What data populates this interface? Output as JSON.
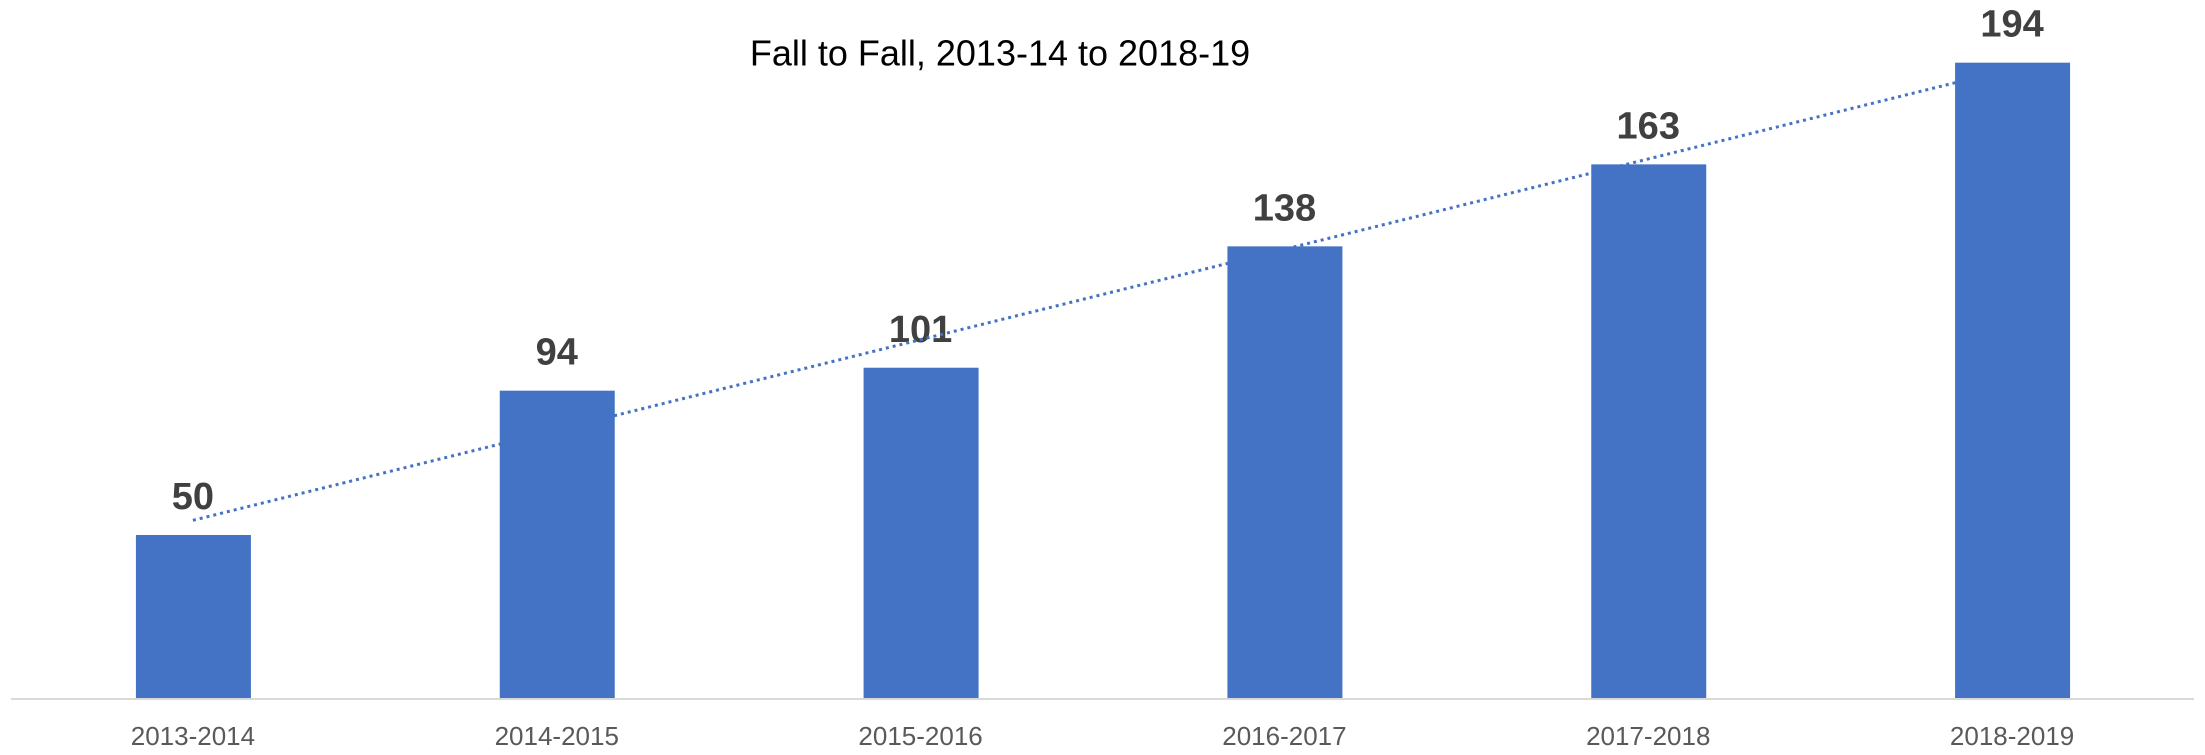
{
  "chart_data": {
    "type": "bar",
    "title": "Fall to Fall, 2013-14 to 2018-19",
    "categories": [
      "2013-2014",
      "2014-2015",
      "2015-2016",
      "2016-2017",
      "2017-2018",
      "2018-2019"
    ],
    "values": [
      50,
      94,
      101,
      138,
      163,
      194
    ],
    "color": "#4472c4",
    "ylim": [
      0,
      200
    ],
    "trendline": true,
    "data_labels": true
  }
}
